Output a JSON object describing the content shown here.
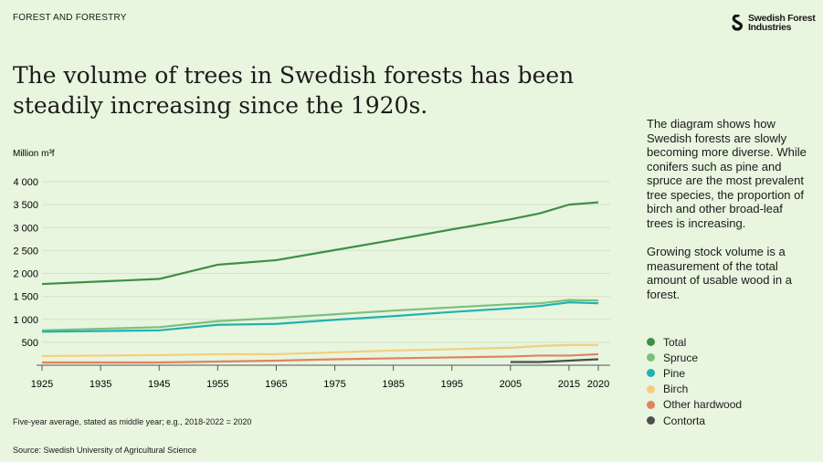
{
  "header": {
    "kicker": "FOREST AND FORESTRY",
    "logo_text_line1": "Swedish Forest",
    "logo_text_line2": "Industries"
  },
  "title": "The volume of trees in Swedish forests has been steadily increasing since the 1920s.",
  "side_text": {
    "p1": "The diagram shows how Swedish forests are slowly becoming more diverse. While conifers such as pine and spruce are the most prevalent tree species, the proportion of birch and other broad-leaf trees is increasing.",
    "p2": "Growing stock volume is a measurement of the total amount of usable wood in a forest."
  },
  "footnote": "Five-year average, stated as middle year; e.g., 2018-2022 = 2020",
  "source": "Source: Swedish University of Agricultural Science",
  "chart_data": {
    "type": "line",
    "ylabel": "Million m³f",
    "ylim": [
      0,
      4000
    ],
    "yticks": [
      500,
      1000,
      1500,
      2000,
      2500,
      3000,
      3500,
      4000
    ],
    "ytick_labels": [
      "500",
      "1 000",
      "1 500",
      "2 000",
      "2 500",
      "3 000",
      "3 500",
      "4 000"
    ],
    "xlim": [
      1925,
      2020
    ],
    "xticks": [
      1925,
      1935,
      1945,
      1955,
      1965,
      1975,
      1985,
      1995,
      2005,
      2015,
      2020
    ],
    "grid": true,
    "legend_placement": "right",
    "series": [
      {
        "name": "Total",
        "color": "#3d8f44",
        "x": [
          1925,
          1945,
          1955,
          1965,
          1975,
          1985,
          1995,
          2005,
          2010,
          2015,
          2020
        ],
        "values": [
          1770,
          1880,
          2190,
          2290,
          2510,
          2730,
          2960,
          3180,
          3310,
          3500,
          3550
        ]
      },
      {
        "name": "Spruce",
        "color": "#7cbf7e",
        "x": [
          1925,
          1945,
          1955,
          1965,
          1975,
          1985,
          1995,
          2005,
          2010,
          2015,
          2020
        ],
        "values": [
          760,
          830,
          960,
          1030,
          1110,
          1190,
          1260,
          1330,
          1350,
          1420,
          1410
        ]
      },
      {
        "name": "Pine",
        "color": "#1fb3b0",
        "x": [
          1925,
          1945,
          1955,
          1965,
          1975,
          1985,
          1995,
          2005,
          2010,
          2015,
          2020
        ],
        "values": [
          730,
          760,
          880,
          900,
          990,
          1070,
          1160,
          1240,
          1290,
          1370,
          1350
        ]
      },
      {
        "name": "Birch",
        "color": "#f2cf7e",
        "x": [
          1925,
          1945,
          1955,
          1965,
          1975,
          1985,
          1995,
          2005,
          2010,
          2015,
          2020
        ],
        "values": [
          200,
          220,
          240,
          240,
          280,
          320,
          350,
          380,
          420,
          440,
          440
        ]
      },
      {
        "name": "Other hardwood",
        "color": "#e0835e",
        "x": [
          1925,
          1945,
          1955,
          1965,
          1975,
          1985,
          1995,
          2005,
          2010,
          2015,
          2020
        ],
        "values": [
          60,
          60,
          80,
          100,
          130,
          150,
          170,
          190,
          210,
          210,
          240
        ]
      },
      {
        "name": "Contorta",
        "color": "#4a4f4b",
        "x": [
          2005,
          2010,
          2015,
          2020
        ],
        "values": [
          70,
          70,
          100,
          130
        ]
      }
    ]
  }
}
